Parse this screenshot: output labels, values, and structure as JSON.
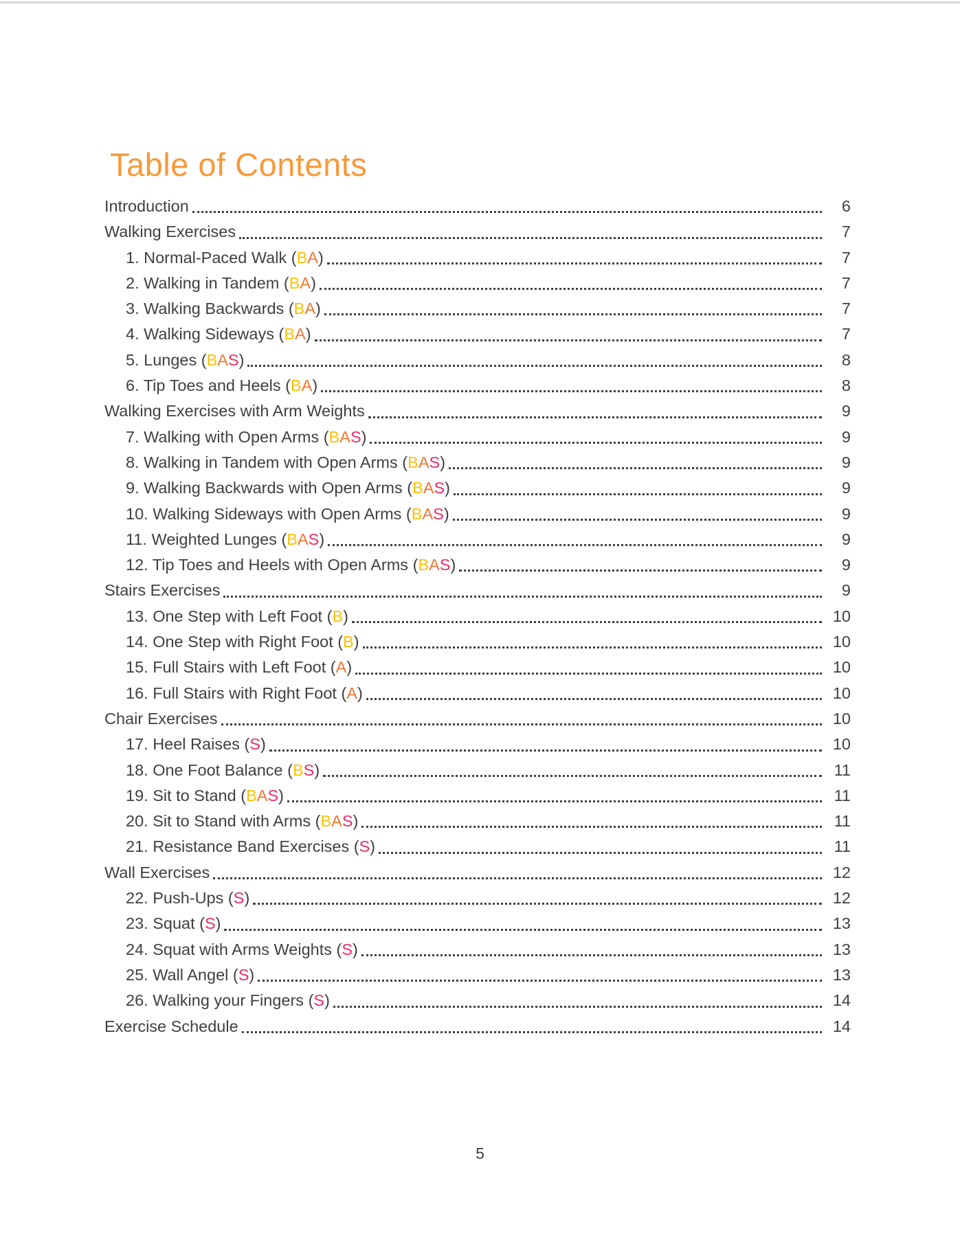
{
  "page": {
    "footer_page_number": "5",
    "top_border_color": "#d8d8d8",
    "background_color": "#ffffff"
  },
  "toc": {
    "title": "Table of Contents",
    "title_color": "#F7993B",
    "text_color": "#3F3F3F",
    "tag_colors": {
      "B": "#FFC000",
      "A": "#F07633",
      "S": "#ED2A67"
    },
    "entries": [
      {
        "label": "Introduction",
        "tags": "",
        "page": "6",
        "indent": 0
      },
      {
        "label": "Walking Exercises",
        "tags": "",
        "page": "7",
        "indent": 0
      },
      {
        "label": "1. Normal-Paced Walk",
        "tags": "BA",
        "page": "7",
        "indent": 1
      },
      {
        "label": "2. Walking in Tandem",
        "tags": "BA",
        "page": "7",
        "indent": 1
      },
      {
        "label": "3. Walking Backwards",
        "tags": "BA",
        "page": "7",
        "indent": 1
      },
      {
        "label": "4. Walking Sideways",
        "tags": "BA",
        "page": "7",
        "indent": 1
      },
      {
        "label": "5. Lunges",
        "tags": "BAS",
        "page": "8",
        "indent": 1
      },
      {
        "label": "6. Tip Toes and Heels",
        "tags": "BA",
        "page": "8",
        "indent": 1
      },
      {
        "label": "Walking Exercises with Arm Weights",
        "tags": "",
        "page": "9",
        "indent": 0
      },
      {
        "label": "7. Walking with Open Arms",
        "tags": "BAS",
        "page": "9",
        "indent": 1
      },
      {
        "label": "8. Walking in Tandem with Open Arms",
        "tags": "BAS",
        "page": "9",
        "indent": 1
      },
      {
        "label": "9. Walking Backwards with Open Arms",
        "tags": "BAS",
        "page": "9",
        "indent": 1
      },
      {
        "label": "10. Walking Sideways with Open Arms",
        "tags": "BAS",
        "page": "9",
        "indent": 1
      },
      {
        "label": "11. Weighted Lunges",
        "tags": "BAS",
        "page": "9",
        "indent": 1
      },
      {
        "label": "12. Tip Toes and Heels with Open Arms",
        "tags": "BAS",
        "page": "9",
        "indent": 1
      },
      {
        "label": "Stairs Exercises",
        "tags": "",
        "page": "9",
        "indent": 0
      },
      {
        "label": "13. One Step with Left Foot",
        "tags": "B",
        "page": "10",
        "indent": 1
      },
      {
        "label": "14. One Step with Right Foot",
        "tags": "B",
        "page": "10",
        "indent": 1
      },
      {
        "label": "15. Full Stairs with Left Foot",
        "tags": "A",
        "page": "10",
        "indent": 1
      },
      {
        "label": "16. Full Stairs with Right Foot",
        "tags": "A",
        "page": "10",
        "indent": 1
      },
      {
        "label": "Chair Exercises",
        "tags": "",
        "page": "10",
        "indent": 0
      },
      {
        "label": "17. Heel Raises",
        "tags": "S",
        "page": "10",
        "indent": 1
      },
      {
        "label": "18. One Foot Balance",
        "tags": "BS",
        "page": "11",
        "indent": 1
      },
      {
        "label": "19. Sit to Stand",
        "tags": "BAS",
        "page": "11",
        "indent": 1
      },
      {
        "label": "20. Sit to Stand with Arms",
        "tags": "BAS",
        "page": "11",
        "indent": 1
      },
      {
        "label": "21. Resistance Band Exercises",
        "tags": "S",
        "page": "11",
        "indent": 1
      },
      {
        "label": "Wall Exercises",
        "tags": "",
        "page": "12",
        "indent": 0
      },
      {
        "label": "22. Push-Ups",
        "tags": "S",
        "page": "12",
        "indent": 1
      },
      {
        "label": "23. Squat",
        "tags": "S",
        "page": "13",
        "indent": 1
      },
      {
        "label": "24. Squat with Arms Weights",
        "tags": "S",
        "page": "13",
        "indent": 1
      },
      {
        "label": "25. Wall Angel",
        "tags": "S",
        "page": "13",
        "indent": 1
      },
      {
        "label": "26. Walking your Fingers",
        "tags": "S",
        "page": "14",
        "indent": 1
      },
      {
        "label": "Exercise Schedule",
        "tags": "",
        "page": "14",
        "indent": 0
      }
    ]
  }
}
